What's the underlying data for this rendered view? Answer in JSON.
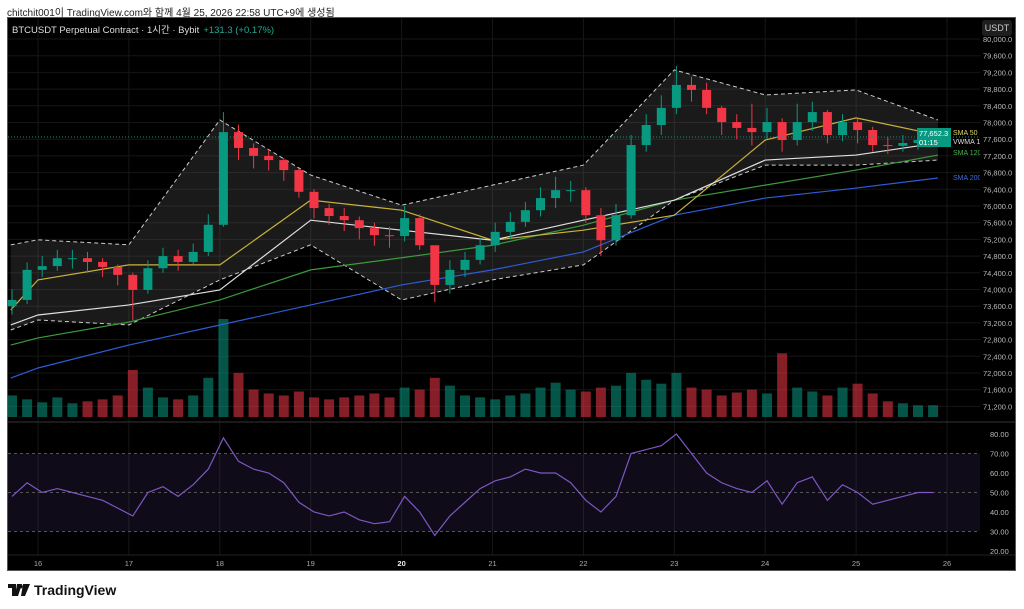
{
  "caption": "chitchit001이 TradingView.com와 함께 4월 25, 2026 22:58 UTC+9에 생성됨",
  "legend": {
    "symbol": "BTCUSDT Perpetual Contract · 1시간 · Bybit",
    "change": "+131.3 (+0.17%)"
  },
  "currency_button": "USDT",
  "logo_text": "TradingView",
  "colors": {
    "up": "#089981",
    "down": "#f23645",
    "sma50": "#c9b23a",
    "vwma": "#e0e0e0",
    "sma120": "#3c9a3c",
    "sma200": "#2f5bd6",
    "rsi": "#7e57c2"
  },
  "chart_data": {
    "type": "candlestick",
    "title": "BTCUSDT Perpetual Contract · 1시간 · Bybit",
    "interval_sampled": "4h (approximated from 1h chart)",
    "x_ticks": [
      "16",
      "17",
      "18",
      "19",
      "20",
      "21",
      "22",
      "23",
      "24",
      "25",
      "26"
    ],
    "y_ticks": [
      "80,000.0",
      "79,600.0",
      "79,200.0",
      "78,800.0",
      "78,400.0",
      "78,000.0",
      "77,600.0",
      "77,200.0",
      "76,800.0",
      "76,400.0",
      "76,000.0",
      "75,600.0",
      "75,200.0",
      "74,800.0",
      "74,400.0",
      "74,000.0",
      "73,600.0",
      "73,200.0",
      "72,800.0",
      "72,400.0",
      "72,000.0",
      "71,600.0",
      "71,200.0"
    ],
    "ylim": [
      71000,
      80200
    ],
    "last_price": "77,652.3",
    "countdown": "01:15",
    "close": [
      73750,
      74470,
      74560,
      74750,
      74750,
      74660,
      74540,
      74350,
      73990,
      74510,
      74800,
      74660,
      74900,
      75550,
      77770,
      77390,
      77200,
      77100,
      76860,
      76340,
      75950,
      75760,
      75660,
      75470,
      75300,
      75280,
      75710,
      75060,
      74110,
      74470,
      74710,
      75060,
      75380,
      75620,
      75900,
      76190,
      76380,
      76380,
      75780,
      75180,
      75780,
      77460,
      77940,
      78350,
      78900,
      78780,
      78350,
      78010,
      77870,
      77770,
      78010,
      77580,
      78010,
      78250,
      77700,
      78010,
      77820,
      77460,
      77440,
      77510,
      77580,
      77652.3
    ],
    "high": [
      74000,
      74650,
      74800,
      74950,
      74950,
      74900,
      74750,
      74600,
      74400,
      74700,
      75000,
      74950,
      75100,
      75800,
      78250,
      77950,
      77500,
      77350,
      77150,
      76900,
      76400,
      76050,
      75950,
      75750,
      75600,
      75500,
      76000,
      75800,
      74900,
      74700,
      74900,
      75250,
      75600,
      75850,
      76100,
      76450,
      76700,
      76600,
      76450,
      75950,
      76050,
      77700,
      78200,
      78650,
      79350,
      79100,
      78950,
      78400,
      78200,
      78450,
      78350,
      78100,
      78450,
      78500,
      78300,
      78200,
      78100,
      77900,
      77650,
      77700,
      77850,
      77750
    ],
    "low": [
      73400,
      73650,
      74300,
      74450,
      74500,
      74400,
      74300,
      74100,
      73270,
      73900,
      74400,
      74450,
      74600,
      74800,
      75500,
      77100,
      76900,
      76850,
      76600,
      76200,
      75700,
      75550,
      75400,
      75200,
      75050,
      75000,
      75150,
      74950,
      73700,
      73900,
      74300,
      74600,
      74900,
      75200,
      75500,
      75750,
      75950,
      76100,
      75600,
      74800,
      75050,
      75700,
      77300,
      77700,
      78200,
      78500,
      78200,
      77700,
      77600,
      77450,
      77600,
      77300,
      77450,
      77800,
      77500,
      77550,
      77500,
      77300,
      77250,
      77300,
      77350,
      77500
    ],
    "volume": [
      22,
      18,
      15,
      20,
      14,
      16,
      18,
      22,
      48,
      30,
      20,
      18,
      22,
      40,
      100,
      45,
      28,
      24,
      22,
      26,
      20,
      18,
      20,
      22,
      24,
      20,
      30,
      28,
      40,
      32,
      22,
      20,
      18,
      22,
      24,
      30,
      35,
      28,
      26,
      30,
      32,
      45,
      38,
      34,
      45,
      30,
      28,
      22,
      25,
      28,
      24,
      65,
      30,
      26,
      22,
      30,
      34,
      24,
      16,
      14,
      12,
      12
    ],
    "rsi": [
      48,
      55,
      50,
      52,
      50,
      48,
      46,
      42,
      38,
      50,
      53,
      48,
      54,
      62,
      78,
      66,
      62,
      60,
      55,
      45,
      40,
      38,
      40,
      36,
      34,
      35,
      48,
      40,
      28,
      38,
      45,
      52,
      56,
      58,
      62,
      60,
      60,
      55,
      46,
      40,
      48,
      70,
      72,
      74,
      80,
      70,
      60,
      55,
      52,
      50,
      56,
      44,
      55,
      58,
      46,
      54,
      50,
      44,
      46,
      48,
      50,
      50
    ],
    "rsi_ticks": [
      "80.00",
      "70.00",
      "60.00",
      "50.00",
      "40.00",
      "30.00",
      "20.00"
    ],
    "rsi_band": [
      30,
      70
    ],
    "indicators": {
      "sample_x_days": [
        15.7,
        16,
        17,
        18,
        19,
        20,
        21,
        22,
        23,
        24,
        25,
        25.9
      ],
      "sma50": {
        "label": "SMA 50",
        "values": [
          73510,
          74230,
          74590,
          74590,
          76140,
          75900,
          75180,
          75420,
          75780,
          77580,
          78110,
          77700
        ]
      },
      "vwma": {
        "label": "VWMA 1",
        "values": [
          73150,
          73390,
          73630,
          73990,
          75660,
          75420,
          75180,
          75660,
          76140,
          77100,
          77220,
          77510
        ]
      },
      "sma120": {
        "label": "SMA 120",
        "values": [
          72670,
          72840,
          73220,
          73750,
          74470,
          74760,
          75060,
          75540,
          76140,
          76500,
          76860,
          77220
        ]
      },
      "sma200": {
        "label": "SMA 200",
        "values": [
          71880,
          72120,
          72670,
          73150,
          73630,
          74110,
          74470,
          74900,
          75780,
          76190,
          76430,
          76670
        ]
      },
      "bb_upper": [
        75070,
        75190,
        75070,
        78060,
        76740,
        76020,
        76500,
        76980,
        79260,
        78660,
        78780,
        78060
      ],
      "bb_lower": [
        73030,
        73270,
        73150,
        74230,
        75070,
        73750,
        74230,
        74590,
        76140,
        76980,
        76980,
        77100
      ]
    }
  }
}
